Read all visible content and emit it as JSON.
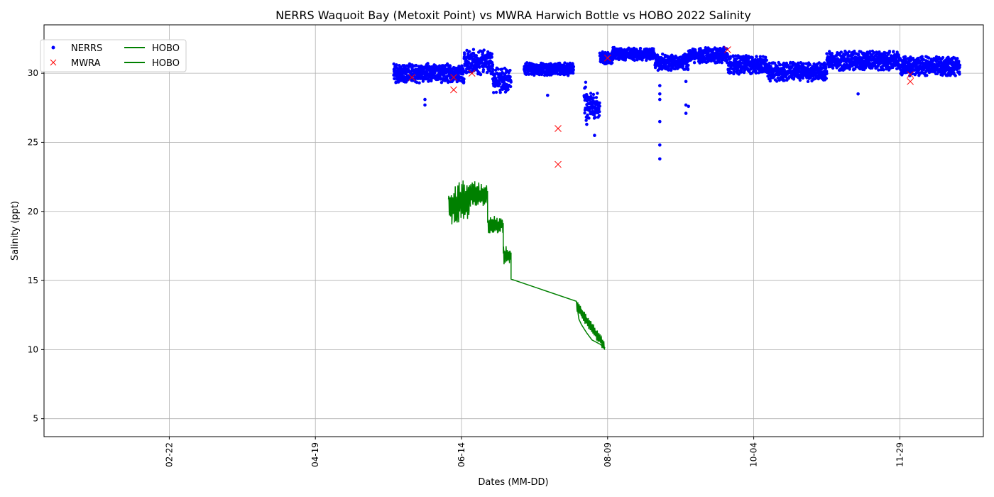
{
  "chart_data": {
    "type": "scatter",
    "title": "NERRS Waquoit Bay (Metoxit Point) vs MWRA Harwich Bottle vs HOBO 2022 Salinity",
    "xlabel": "Dates (MM-DD)",
    "ylabel": "Salinity (ppt)",
    "xlim": [
      "2022-01-05",
      "2022-12-31"
    ],
    "ylim": [
      3.7,
      33.5
    ],
    "grid": true,
    "legend_position": "top-left",
    "legend": [
      "NERRS",
      "MWRA",
      "HOBO",
      "HOBO"
    ],
    "x_ticks": [
      {
        "date": "2022-02-22",
        "label": "02-22"
      },
      {
        "date": "2022-04-19",
        "label": "04-19"
      },
      {
        "date": "2022-06-14",
        "label": "06-14"
      },
      {
        "date": "2022-08-09",
        "label": "08-09"
      },
      {
        "date": "2022-10-04",
        "label": "10-04"
      },
      {
        "date": "2022-11-29",
        "label": "11-29"
      }
    ],
    "y_ticks": [
      5,
      10,
      15,
      20,
      25,
      30
    ],
    "colors": {
      "NERRS": "#0000ff",
      "MWRA": "#ff0000",
      "HOBO": "#008000"
    },
    "series": [
      {
        "name": "NERRS",
        "marker": "dot",
        "segments": [
          {
            "start": "2022-05-19",
            "end": "2022-06-15",
            "mean": 30.0,
            "spread": 0.6
          },
          {
            "start": "2022-06-15",
            "end": "2022-06-26",
            "mean": 30.8,
            "spread": 0.8
          },
          {
            "start": "2022-06-26",
            "end": "2022-07-03",
            "mean": 29.5,
            "spread": 0.8
          },
          {
            "start": "2022-07-08",
            "end": "2022-07-27",
            "mean": 30.3,
            "spread": 0.4
          },
          {
            "start": "2022-07-31",
            "end": "2022-08-01",
            "mean": 28.0,
            "spread": 1.4
          },
          {
            "start": "2022-08-01",
            "end": "2022-08-06",
            "mean": 27.6,
            "spread": 0.8
          },
          {
            "start": "2022-08-06",
            "end": "2022-08-11",
            "mean": 31.1,
            "spread": 0.4
          },
          {
            "start": "2022-08-11",
            "end": "2022-08-27",
            "mean": 31.4,
            "spread": 0.4
          },
          {
            "start": "2022-08-27",
            "end": "2022-09-09",
            "mean": 30.8,
            "spread": 0.5
          },
          {
            "start": "2022-09-09",
            "end": "2022-09-24",
            "mean": 31.3,
            "spread": 0.5
          },
          {
            "start": "2022-09-24",
            "end": "2022-10-09",
            "mean": 30.6,
            "spread": 0.6
          },
          {
            "start": "2022-10-09",
            "end": "2022-11-01",
            "mean": 30.1,
            "spread": 0.6
          },
          {
            "start": "2022-11-01",
            "end": "2022-11-29",
            "mean": 30.9,
            "spread": 0.6
          },
          {
            "start": "2022-11-29",
            "end": "2022-12-22",
            "mean": 30.5,
            "spread": 0.6
          }
        ],
        "outliers": [
          {
            "x": "2022-05-31",
            "y": 28.1
          },
          {
            "x": "2022-05-31",
            "y": 27.7
          },
          {
            "x": "2022-07-17",
            "y": 28.4
          },
          {
            "x": "2022-08-01",
            "y": 26.3
          },
          {
            "x": "2022-08-04",
            "y": 25.5
          },
          {
            "x": "2022-08-29",
            "y": 23.8
          },
          {
            "x": "2022-08-29",
            "y": 24.8
          },
          {
            "x": "2022-08-29",
            "y": 26.5
          },
          {
            "x": "2022-08-29",
            "y": 28.1
          },
          {
            "x": "2022-08-29",
            "y": 28.5
          },
          {
            "x": "2022-08-29",
            "y": 29.1
          },
          {
            "x": "2022-09-08",
            "y": 29.4
          },
          {
            "x": "2022-09-08",
            "y": 27.7
          },
          {
            "x": "2022-09-08",
            "y": 27.1
          },
          {
            "x": "2022-09-09",
            "y": 27.6
          },
          {
            "x": "2022-11-13",
            "y": 28.5
          }
        ]
      },
      {
        "name": "MWRA",
        "marker": "x",
        "points": [
          {
            "x": "2022-05-26",
            "y": 29.7
          },
          {
            "x": "2022-06-11",
            "y": 29.7
          },
          {
            "x": "2022-06-11",
            "y": 28.8
          },
          {
            "x": "2022-06-18",
            "y": 30.0
          },
          {
            "x": "2022-07-21",
            "y": 26.0
          },
          {
            "x": "2022-07-21",
            "y": 23.4
          },
          {
            "x": "2022-08-09",
            "y": 31.1
          },
          {
            "x": "2022-09-24",
            "y": 31.7
          },
          {
            "x": "2022-12-03",
            "y": 29.9
          },
          {
            "x": "2022-12-03",
            "y": 29.4
          }
        ]
      },
      {
        "name": "HOBO",
        "marker": "line",
        "segments": [
          {
            "start": "2022-06-09",
            "end": "2022-06-13",
            "mean": 20.3,
            "spread": 1.4
          },
          {
            "start": "2022-06-13",
            "end": "2022-06-17",
            "mean": 20.8,
            "spread": 1.3
          },
          {
            "start": "2022-06-17",
            "end": "2022-06-24",
            "mean": 21.2,
            "spread": 0.9
          },
          {
            "start": "2022-06-24",
            "end": "2022-06-30",
            "mean": 19.0,
            "spread": 0.6
          },
          {
            "start": "2022-06-30",
            "end": "2022-07-03",
            "mean": 16.8,
            "spread": 0.6
          }
        ],
        "points": [
          {
            "x": "2022-07-03",
            "y": 15.1
          },
          {
            "x": "2022-07-28",
            "y": 13.5
          },
          {
            "x": "2022-07-29",
            "y": 12.2
          },
          {
            "x": "2022-07-30",
            "y": 11.8
          },
          {
            "x": "2022-08-01",
            "y": 11.2
          },
          {
            "x": "2022-08-03",
            "y": 10.7
          },
          {
            "x": "2022-08-06",
            "y": 10.4
          },
          {
            "x": "2022-08-08",
            "y": 10.1
          }
        ],
        "tail_segment": {
          "start": "2022-07-28",
          "end": "2022-08-08",
          "mean": 11.0,
          "spread": 0.5
        }
      }
    ]
  }
}
